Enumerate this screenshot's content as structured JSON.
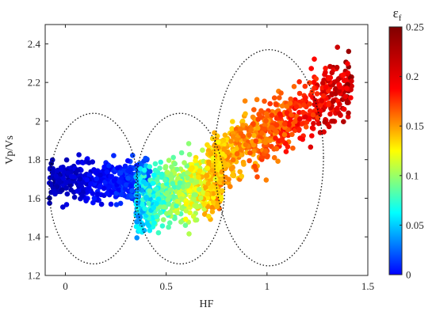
{
  "chart_data": {
    "type": "scatter",
    "xlabel": "HF",
    "ylabel": "Vp/Vs",
    "xlim": [
      -0.1,
      1.5
    ],
    "ylim": [
      1.2,
      2.5
    ],
    "xticks": [
      "0",
      "0.5",
      "1",
      "1.5"
    ],
    "yticks": [
      "1.2",
      "1.4",
      "1.6",
      "1.8",
      "2",
      "2.2",
      "2.4"
    ],
    "xtick_values": [
      0,
      0.5,
      1,
      1.5
    ],
    "ytick_values": [
      1.2,
      1.4,
      1.6,
      1.8,
      2.0,
      2.2,
      2.4
    ],
    "grid": false,
    "colorbar": {
      "label_main": "ε",
      "label_sub": "f",
      "range": [
        0,
        0.25
      ],
      "ticks": [
        "0",
        "0.05",
        "0.1",
        "0.15",
        "0.2",
        "0.25"
      ],
      "tick_values": [
        0,
        0.05,
        0.1,
        0.15,
        0.2,
        0.25
      ],
      "colormap": "jet"
    },
    "clusters": [
      {
        "x_range": [
          -0.08,
          0.42
        ],
        "y_center": 1.69,
        "y_sd": 0.09,
        "color_value_range": [
          0.0,
          0.06
        ],
        "count": 450
      },
      {
        "x_range": [
          0.35,
          0.78
        ],
        "y_center": 1.63,
        "y_sd": 0.13,
        "color_value_range": [
          0.06,
          0.2
        ],
        "count": 700
      },
      {
        "x_range": [
          0.7,
          1.42
        ],
        "y_center": 1.95,
        "y_sd": 0.13,
        "color_value_range": [
          0.15,
          0.25
        ],
        "count": 700
      }
    ],
    "ellipses": [
      {
        "cx": 0.14,
        "cy": 1.65,
        "rx": 0.22,
        "ry": 0.39
      },
      {
        "cx": 0.57,
        "cy": 1.65,
        "rx": 0.22,
        "ry": 0.39
      },
      {
        "cx": 1.01,
        "cy": 1.81,
        "rx": 0.27,
        "ry": 0.56
      }
    ]
  }
}
